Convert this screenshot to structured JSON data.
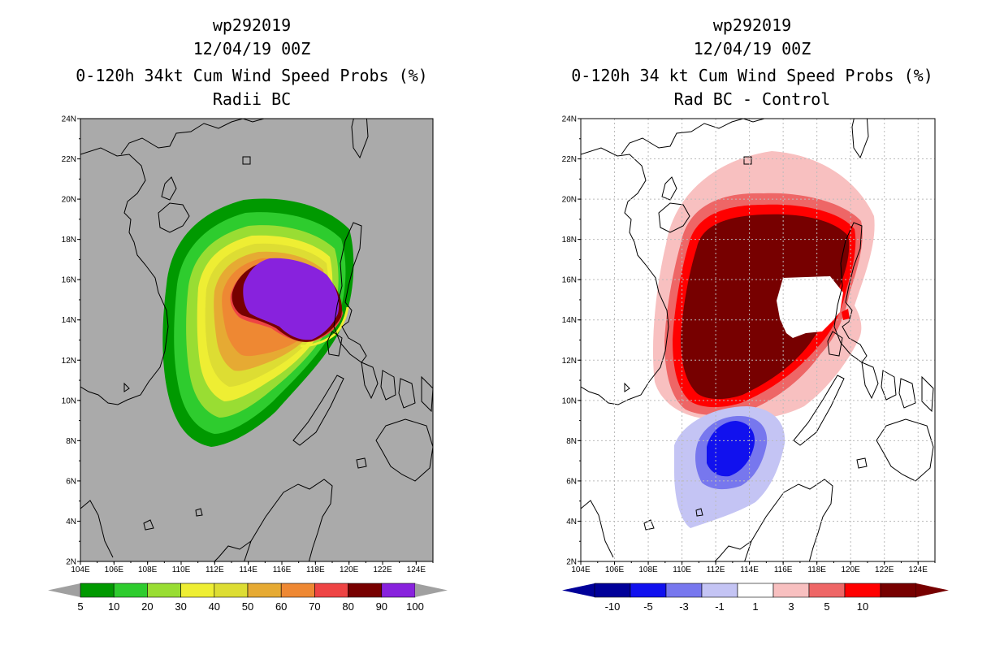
{
  "left": {
    "title_lines": [
      "wp292019",
      "12/04/19 00Z",
      "0-120h 34kt Cum Wind Speed Probs (%)",
      "Radii BC"
    ],
    "colorbar": {
      "labels": [
        "5",
        "10",
        "20",
        "30",
        "40",
        "50",
        "60",
        "70",
        "80",
        "90",
        "100"
      ],
      "colors": [
        "#009900",
        "#2ecc2e",
        "#99dd33",
        "#eeee33",
        "#dddd33",
        "#e6aa33",
        "#ee8833",
        "#ee4444",
        "#770000",
        "#8822dd"
      ],
      "end_color": "#a0a0a0"
    },
    "map_background": "#aaaaaa"
  },
  "right": {
    "title_lines": [
      "wp292019",
      "12/04/19 00Z",
      "0-120h 34 kt Cum Wind Speed Probs (%)",
      "Rad BC - Control"
    ],
    "colorbar": {
      "labels": [
        "-10",
        "-5",
        "-3",
        "-1",
        "1",
        "3",
        "5",
        "10"
      ],
      "colors": [
        "#000099",
        "#1111ee",
        "#7777ee",
        "#c4c4f4",
        "#ffffff",
        "#f8c0c0",
        "#ee6666",
        "#ff0000",
        "#770000"
      ]
    },
    "map_background": "#ffffff"
  },
  "axes": {
    "lat_labels": [
      "2N",
      "4N",
      "6N",
      "8N",
      "10N",
      "12N",
      "14N",
      "16N",
      "18N",
      "20N",
      "22N",
      "24N"
    ],
    "lon_labels": [
      "104E",
      "106E",
      "108E",
      "110E",
      "112E",
      "114E",
      "116E",
      "118E",
      "120E",
      "122E",
      "124E"
    ]
  },
  "chart_data": [
    {
      "type": "map-contour",
      "title": "0-120h 34kt Cum Wind Speed Probs (%) Radii BC",
      "units": "%",
      "lon_range": [
        104,
        125
      ],
      "lat_range": [
        2,
        24
      ],
      "levels": [
        5,
        10,
        20,
        30,
        40,
        50,
        60,
        70,
        80,
        90,
        100
      ],
      "max_center": {
        "lon": 116.5,
        "lat": 15.2
      }
    },
    {
      "type": "map-contour",
      "title": "0-120h 34 kt Cum Wind Speed Probs (%) Rad BC - Control",
      "units": "%",
      "lon_range": [
        104,
        125
      ],
      "lat_range": [
        2,
        24
      ],
      "levels": [
        -10,
        -5,
        -3,
        -1,
        1,
        3,
        5,
        10
      ],
      "positive_center": {
        "lon": 114.5,
        "lat": 14.5
      },
      "negative_center": {
        "lon": 113,
        "lat": 7.8
      }
    }
  ]
}
